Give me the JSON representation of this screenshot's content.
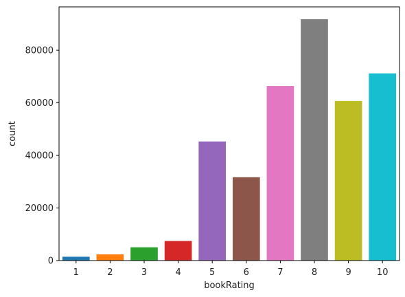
{
  "chart_data": {
    "type": "bar",
    "categories": [
      "1",
      "2",
      "3",
      "4",
      "5",
      "6",
      "7",
      "8",
      "9",
      "10"
    ],
    "values": [
      1450,
      2350,
      5050,
      7450,
      45300,
      31700,
      66400,
      91800,
      60700,
      71200
    ],
    "colors": [
      "#1f77b4",
      "#ff7f0e",
      "#2ca02c",
      "#d62728",
      "#9467bd",
      "#8c564b",
      "#e377c2",
      "#7f7f7f",
      "#bcbd22",
      "#17becf"
    ],
    "xlabel": "bookRating",
    "ylabel": "count",
    "ylim": [
      0,
      96500
    ],
    "yticks": [
      0,
      20000,
      40000,
      60000,
      80000
    ],
    "ytick_labels": [
      "0",
      "20000",
      "40000",
      "60000",
      "80000"
    ],
    "grid": false,
    "legend": "none"
  }
}
